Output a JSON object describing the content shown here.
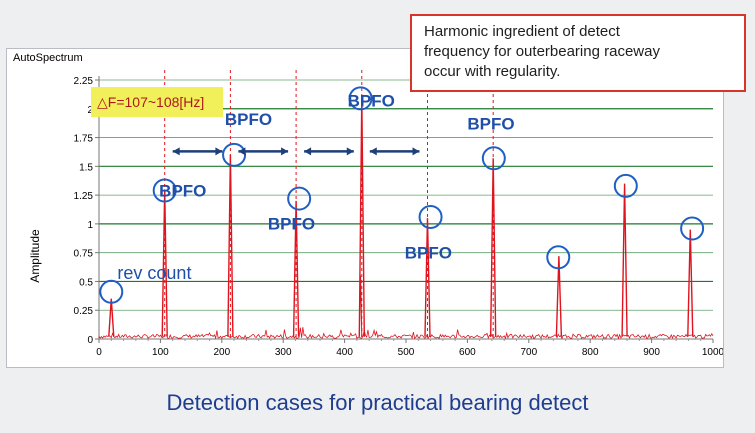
{
  "callout": {
    "line1": "Harmonic ingredient of detect",
    "line2": "frequency for outerbearing raceway",
    "line3": "occur with regularity."
  },
  "caption": "Detection cases for practical bearing detect",
  "colors": {
    "spectrum": "#e0141e",
    "gridline": "#1d7a2c",
    "marker": "#1f5fc4",
    "annotation_text": "#1f4fa8",
    "highlight_box": "#f1f05a",
    "callout_border": "#d8352a",
    "caption_text": "#1e3d8f"
  },
  "chart_data": {
    "type": "line",
    "title": "AutoSpectrum",
    "xlabel": "",
    "ylabel": "Amplitude",
    "xlim": [
      0,
      1000
    ],
    "ylim": [
      0,
      2.25
    ],
    "x_ticks": [
      0,
      100,
      200,
      300,
      400,
      500,
      600,
      700,
      800,
      900,
      1000
    ],
    "y_ticks": [
      0,
      0.25,
      0.5,
      0.75,
      1,
      1.25,
      1.5,
      1.75,
      2,
      2.25
    ],
    "x_tick_labels": [
      "0",
      "100",
      "200",
      "300",
      "400",
      "500",
      "600",
      "700",
      "800",
      "900",
      "1000"
    ],
    "y_tick_labels": [
      "0",
      "0.25",
      "0.5",
      "0.75",
      "1",
      "1.25",
      "1.5",
      "1.75",
      "2",
      "2.25"
    ],
    "grid": "horizontal",
    "harmonic_lines_x": [
      107,
      214,
      321,
      428,
      535,
      642
    ],
    "series": [
      {
        "peaks": [
          {
            "x": 20,
            "y": 0.35
          },
          {
            "x": 107,
            "y": 1.3
          },
          {
            "x": 214,
            "y": 1.6
          },
          {
            "x": 321,
            "y": 1.2
          },
          {
            "x": 428,
            "y": 2.1
          },
          {
            "x": 535,
            "y": 1.05
          },
          {
            "x": 642,
            "y": 1.57
          },
          {
            "x": 749,
            "y": 0.72
          },
          {
            "x": 856,
            "y": 1.35
          },
          {
            "x": 963,
            "y": 0.95
          }
        ]
      }
    ],
    "annotations": [
      {
        "text": "rev count",
        "x": 30,
        "y": 0.52,
        "circle": {
          "x": 20,
          "y": 0.41
        }
      },
      {
        "text": "BPFO",
        "x": 98,
        "y": 1.24,
        "circle": {
          "x": 107,
          "y": 1.29
        }
      },
      {
        "text": "BPFO",
        "x": 205,
        "y": 1.86,
        "circle": {
          "x": 220,
          "y": 1.6
        }
      },
      {
        "text": "BPFO",
        "x": 275,
        "y": 0.95,
        "circle": {
          "x": 326,
          "y": 1.22
        }
      },
      {
        "text": "BPFO",
        "x": 405,
        "y": 2.02,
        "circle": {
          "x": 426,
          "y": 2.09
        }
      },
      {
        "text": "BPFO",
        "x": 498,
        "y": 0.7,
        "circle": {
          "x": 540,
          "y": 1.06
        }
      },
      {
        "text": "BPFO",
        "x": 600,
        "y": 1.82,
        "circle": {
          "x": 643,
          "y": 1.57
        }
      },
      {
        "text": "",
        "x": 0,
        "y": 0,
        "circle": {
          "x": 748,
          "y": 0.71
        }
      },
      {
        "text": "",
        "x": 0,
        "y": 0,
        "circle": {
          "x": 858,
          "y": 1.33
        }
      },
      {
        "text": "",
        "x": 0,
        "y": 0,
        "circle": {
          "x": 966,
          "y": 0.96
        }
      }
    ],
    "delta_label": "△F=107~108[Hz]",
    "interval_arrows": [
      {
        "x1": 107,
        "x2": 214,
        "y": 1.63
      },
      {
        "x1": 214,
        "x2": 321,
        "y": 1.63
      },
      {
        "x1": 321,
        "x2": 428,
        "y": 1.63
      },
      {
        "x1": 428,
        "x2": 535,
        "y": 1.63
      }
    ]
  }
}
